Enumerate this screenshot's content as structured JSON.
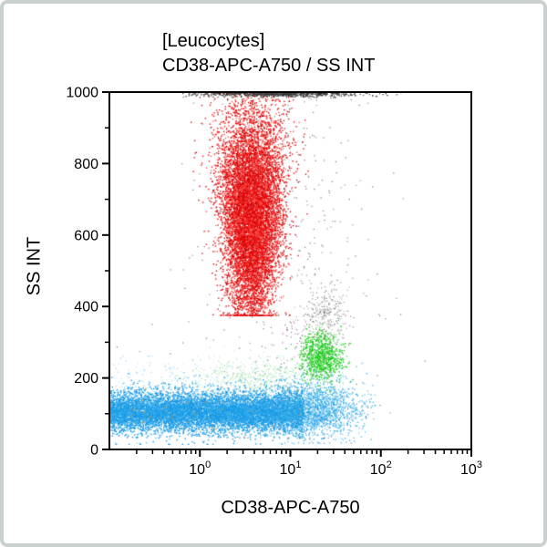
{
  "window": {
    "background": "#ffffff",
    "frame_color": "#cbd0d0"
  },
  "chart_data": {
    "type": "scatter",
    "subtype": "flow-cytometry-dot-plot",
    "gate_title": "[Leucocytes]",
    "axes_title": "CD38-APC-A750 / SS INT",
    "xlabel": "CD38-APC-A750",
    "ylabel": "SS INT",
    "x_scale": "log",
    "x_log_range": [
      -1,
      3
    ],
    "y_scale": "linear",
    "ylim": [
      0,
      1000
    ],
    "x_ticks": [
      {
        "base": "10",
        "exp": "0",
        "value": 1
      },
      {
        "base": "10",
        "exp": "1",
        "value": 10
      },
      {
        "base": "10",
        "exp": "2",
        "value": 100
      },
      {
        "base": "10",
        "exp": "3",
        "value": 1000
      }
    ],
    "y_ticks": [
      {
        "label": "0",
        "value": 0
      },
      {
        "label": "200",
        "value": 200
      },
      {
        "label": "400",
        "value": 400
      },
      {
        "label": "600",
        "value": 600
      },
      {
        "label": "800",
        "value": 800
      },
      {
        "label": "1000",
        "value": 1000
      }
    ],
    "y_minor_step": 100,
    "grid": false,
    "legend": "none",
    "populations": [
      {
        "name": "gray-scatter",
        "kind": "gx",
        "count": 430,
        "mx": 0.9,
        "sx": 0.55,
        "my": 600,
        "sy": 280,
        "clipx": [
          -1,
          2.5
        ],
        "clipy": [
          30,
          1000
        ],
        "size": 1.2,
        "alpha": 0.75,
        "colors": [
          "#4a4a4a",
          "#6a6a6a"
        ]
      },
      {
        "name": "gray-cluster-mid",
        "kind": "gx",
        "count": 260,
        "mx": 1.4,
        "sx": 0.13,
        "my": 375,
        "sy": 38,
        "clipx": [
          0.9,
          1.9
        ],
        "clipy": [
          290,
          480
        ],
        "size": 1.2,
        "alpha": 0.7,
        "colors": [
          "#7a7a7a",
          "#9a9a9a",
          "#555555"
        ]
      },
      {
        "name": "faint-green-smear",
        "kind": "gx",
        "count": 430,
        "mx": 0.6,
        "sx": 0.4,
        "my": 200,
        "sy": 32,
        "clipx": [
          -0.9,
          1.5
        ],
        "clipy": [
          130,
          300
        ],
        "size": 1.2,
        "alpha": 0.55,
        "colors": [
          "#7fd67f",
          "#a5e2a5",
          "#58cc58"
        ]
      },
      {
        "name": "red-granulocytes",
        "kind": "vblob",
        "count": 10200,
        "mx": 0.57,
        "sx0": 0.13,
        "sx1": 0.21,
        "my": 660,
        "sy": 150,
        "ylo": 400,
        "yhi": 1000,
        "clipx": [
          -0.45,
          1.5
        ],
        "clipy": [
          375,
          1000
        ],
        "size": 1.4,
        "alpha": 1,
        "colors": [
          "#ea0d0d",
          "#ea0d0d",
          "#ea0d0d",
          "#c40505",
          "#ff5a5a"
        ]
      },
      {
        "name": "gray-top-pileup",
        "kind": "top",
        "count": 620,
        "mx": 0.85,
        "sx": 0.5,
        "sy": 5,
        "clipx": [
          -0.2,
          2.2
        ],
        "size": 1.3,
        "alpha": 0.95,
        "colors": [
          "#383838",
          "#202020",
          "#5c5c5c"
        ]
      },
      {
        "name": "magenta-specks",
        "kind": "gx",
        "count": 55,
        "mx": 1.3,
        "sx": 0.2,
        "my": 300,
        "sy": 60,
        "clipx": [
          0.6,
          1.8
        ],
        "clipy": [
          150,
          450
        ],
        "size": 1.2,
        "alpha": 0.8,
        "colors": [
          "#cc44cc",
          "#aa33aa"
        ]
      },
      {
        "name": "green-monocytes",
        "kind": "gx",
        "count": 780,
        "mx": 1.35,
        "sx": 0.12,
        "my": 260,
        "sy": 35,
        "clipx": [
          0.95,
          1.75
        ],
        "clipy": [
          160,
          360
        ],
        "size": 1.4,
        "alpha": 1,
        "colors": [
          "#18ce18",
          "#18ce18",
          "#0fbf0f",
          "#6ae06a"
        ]
      },
      {
        "name": "blue-halo",
        "kind": "ux",
        "count": 750,
        "x0": -1.0,
        "x1": 1.6,
        "my": 140,
        "sy": 55,
        "clipy": [
          15,
          260
        ],
        "size": 1.2,
        "alpha": 0.5,
        "colors": [
          "#2aa7ea",
          "#6fc4f0"
        ]
      },
      {
        "name": "blue-lymphocytes-core",
        "kind": "ux",
        "count": 6800,
        "x0": -1.0,
        "x1": 1.15,
        "my": 103,
        "sy": 30,
        "clipy": [
          12,
          240
        ],
        "size": 1.4,
        "alpha": 1,
        "colors": [
          "#1b9ce6",
          "#1b9ce6",
          "#1b9ce6",
          "#0f8fdc",
          "#5fbfee"
        ]
      },
      {
        "name": "blue-lymphocytes-dense-line",
        "kind": "ux",
        "count": 2600,
        "x0": -1.0,
        "x1": 1.1,
        "my": 100,
        "sy": 17,
        "clipy": [
          30,
          190
        ],
        "size": 1.4,
        "alpha": 1,
        "colors": [
          "#1b9ce6",
          "#149ae8",
          "#3db0ec"
        ]
      },
      {
        "name": "blue-right-tail",
        "kind": "gx",
        "count": 1900,
        "mx": 1.25,
        "sx": 0.3,
        "my": 110,
        "sy": 38,
        "clipx": [
          0.85,
          1.95
        ],
        "clipy": [
          15,
          240
        ],
        "size": 1.3,
        "alpha": 0.9,
        "colors": [
          "#1b9ce6",
          "#35aae9",
          "#58bfe9"
        ]
      },
      {
        "name": "orange-specks-in-band",
        "kind": "ux",
        "count": 28,
        "x0": -0.8,
        "x1": 1.2,
        "my": 95,
        "sy": 25,
        "clipy": [
          30,
          170
        ],
        "size": 1.4,
        "alpha": 0.9,
        "colors": [
          "#f5a21b",
          "#e8860e"
        ]
      }
    ]
  }
}
